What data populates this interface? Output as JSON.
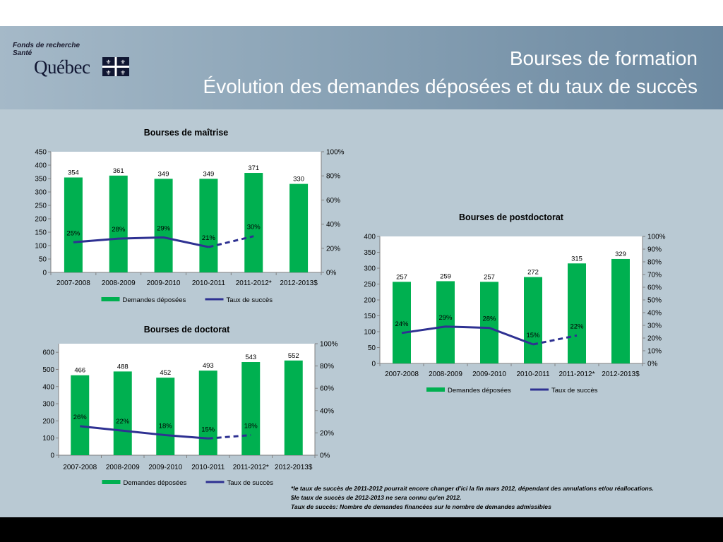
{
  "header": {
    "org_name": "Fonds de recherche\nSanté",
    "wordmark": "Québec",
    "title_line1": "Bourses de formation",
    "title_line2": "Évolution des demandes déposées et du taux de succès"
  },
  "colors": {
    "bar": "#00b050",
    "line": "#2e3192",
    "background": "#b9c9d3",
    "plot": "#ffffff"
  },
  "chart_data": [
    {
      "id": "maitrise",
      "type": "bar",
      "title": "Bourses de maîtrise",
      "categories": [
        "2007-2008",
        "2008-2009",
        "2009-2010",
        "2010-2011",
        "2011-2012*",
        "2012-2013$"
      ],
      "series": [
        {
          "name": "Demandes déposées",
          "kind": "bar",
          "axis": "left",
          "values": [
            354,
            361,
            349,
            349,
            371,
            330
          ],
          "labels": [
            "354",
            "361",
            "349",
            "349",
            "371",
            "330"
          ]
        },
        {
          "name": "Taux de succès",
          "kind": "line",
          "axis": "right",
          "values": [
            25,
            28,
            29,
            21,
            30,
            null
          ],
          "labels": [
            "25%",
            "28%",
            "29%",
            "21%",
            "30%",
            ""
          ],
          "dashed_from_index": 3
        }
      ],
      "left_axis": {
        "min": 0,
        "max": 450,
        "step": 50,
        "ticks": [
          "0",
          "50",
          "100",
          "150",
          "200",
          "250",
          "300",
          "350",
          "400",
          "450"
        ]
      },
      "right_axis": {
        "min": 0,
        "max": 100,
        "step": 20,
        "ticks": [
          "0%",
          "20%",
          "40%",
          "60%",
          "80%",
          "100%"
        ]
      },
      "legend": [
        "Demandes déposées",
        "Taux de succès"
      ],
      "legend_position": "bottom"
    },
    {
      "id": "postdoctorat",
      "type": "bar",
      "title": "Bourses de postdoctorat",
      "categories": [
        "2007-2008",
        "2008-2009",
        "2009-2010",
        "2010-2011",
        "2011-2012*",
        "2012-2013$"
      ],
      "series": [
        {
          "name": "Demandes déposées",
          "kind": "bar",
          "axis": "left",
          "values": [
            257,
            259,
            257,
            272,
            315,
            329
          ],
          "labels": [
            "257",
            "259",
            "257",
            "272",
            "315",
            "329"
          ]
        },
        {
          "name": "Taux de succès",
          "kind": "line",
          "axis": "right",
          "values": [
            24,
            29,
            28,
            15,
            22,
            null
          ],
          "labels": [
            "24%",
            "29%",
            "28%",
            "15%",
            "22%",
            ""
          ],
          "dashed_from_index": 3
        }
      ],
      "left_axis": {
        "min": 0,
        "max": 400,
        "step": 50,
        "ticks": [
          "0",
          "50",
          "100",
          "150",
          "200",
          "250",
          "300",
          "350",
          "400"
        ]
      },
      "right_axis": {
        "min": 0,
        "max": 100,
        "step": 10,
        "ticks": [
          "0%",
          "10%",
          "20%",
          "30%",
          "40%",
          "50%",
          "60%",
          "70%",
          "80%",
          "90%",
          "100%"
        ]
      },
      "legend": [
        "Demandes déposées",
        "Taux de succès"
      ],
      "legend_position": "bottom"
    },
    {
      "id": "doctorat",
      "type": "bar",
      "title": "Bourses de doctorat",
      "categories": [
        "2007-2008",
        "2008-2009",
        "2009-2010",
        "2010-2011",
        "2011-2012*",
        "2012-2013$"
      ],
      "series": [
        {
          "name": "Demandes déposées",
          "kind": "bar",
          "axis": "left",
          "values": [
            466,
            488,
            452,
            493,
            543,
            552
          ],
          "labels": [
            "466",
            "488",
            "452",
            "493",
            "543",
            "552"
          ]
        },
        {
          "name": "Taux de succès",
          "kind": "line",
          "axis": "right",
          "values": [
            26,
            22,
            18,
            15,
            18,
            null
          ],
          "labels": [
            "26%",
            "22%",
            "18%",
            "15%",
            "18%",
            ""
          ],
          "dashed_from_index": 3
        }
      ],
      "left_axis": {
        "min": 0,
        "max": 650,
        "step": 100,
        "ticks": [
          "0",
          "100",
          "200",
          "300",
          "400",
          "500",
          "600"
        ]
      },
      "right_axis": {
        "min": 0,
        "max": 100,
        "step": 20,
        "ticks": [
          "0%",
          "20%",
          "40%",
          "60%",
          "80%",
          "100%"
        ]
      },
      "legend": [
        "Demandes déposées",
        "Taux de succès"
      ],
      "legend_position": "bottom"
    }
  ],
  "footnotes": [
    "*le taux de succès de 2011-2012 pourrait encore changer d'ici la fin mars 2012, dépendant des annulations et/ou réallocations.",
    "$le taux de succès de 2012-2013 ne sera connu qu'en 2012.",
    "Taux de succès: Nombre de demandes financées sur le nombre de demandes admissibles"
  ]
}
